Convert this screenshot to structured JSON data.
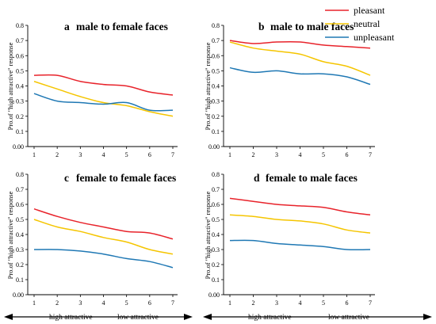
{
  "legend": {
    "entries": [
      {
        "label": "pleasant",
        "color": "#e8232b"
      },
      {
        "label": "neutral",
        "color": "#f5c500"
      },
      {
        "label": "unpleasant",
        "color": "#1f78b4"
      }
    ]
  },
  "arrows": [
    {
      "left_label": "high attractive",
      "right_label": "low attractive"
    },
    {
      "left_label": "high attractive",
      "right_label": "low attractive"
    }
  ],
  "chart_data": [
    {
      "type": "line",
      "letter": "a",
      "title": "male to female faces",
      "ylabel": "Pro.of \"high attractive\" response",
      "x": [
        1,
        2,
        3,
        4,
        5,
        6,
        7
      ],
      "xticks": [
        "1",
        "2",
        "3",
        "4",
        "5",
        "6",
        "7"
      ],
      "ylim": [
        0,
        0.8
      ],
      "yticks": [
        "0.00",
        "0.1",
        "0.2",
        "0.3",
        "0.4",
        "0.5",
        "0.6",
        "0.7",
        "0.8"
      ],
      "series": [
        {
          "name": "pleasant",
          "color": "#e8232b",
          "values": [
            0.47,
            0.47,
            0.43,
            0.41,
            0.4,
            0.36,
            0.34
          ]
        },
        {
          "name": "neutral",
          "color": "#f5c500",
          "values": [
            0.43,
            0.38,
            0.33,
            0.29,
            0.27,
            0.23,
            0.2
          ]
        },
        {
          "name": "unpleasant",
          "color": "#1f78b4",
          "values": [
            0.35,
            0.3,
            0.29,
            0.28,
            0.29,
            0.24,
            0.24
          ]
        }
      ]
    },
    {
      "type": "line",
      "letter": "b",
      "title": "male to male faces",
      "ylabel": "Pro.of \"high attractive\" response",
      "x": [
        1,
        2,
        3,
        4,
        5,
        6,
        7
      ],
      "xticks": [
        "1",
        "2",
        "3",
        "4",
        "5",
        "6",
        "7"
      ],
      "ylim": [
        0,
        0.8
      ],
      "yticks": [
        "0.00",
        "0.1",
        "0.2",
        "0.3",
        "0.4",
        "0.5",
        "0.6",
        "0.7",
        "0.8"
      ],
      "series": [
        {
          "name": "pleasant",
          "color": "#e8232b",
          "values": [
            0.7,
            0.68,
            0.69,
            0.69,
            0.67,
            0.66,
            0.65
          ]
        },
        {
          "name": "neutral",
          "color": "#f5c500",
          "values": [
            0.69,
            0.65,
            0.63,
            0.61,
            0.56,
            0.53,
            0.47
          ]
        },
        {
          "name": "unpleasant",
          "color": "#1f78b4",
          "values": [
            0.52,
            0.49,
            0.5,
            0.48,
            0.48,
            0.46,
            0.41
          ]
        }
      ]
    },
    {
      "type": "line",
      "letter": "c",
      "title": "female to female faces",
      "ylabel": "Pro.of \"high attractive\" response",
      "x": [
        1,
        2,
        3,
        4,
        5,
        6,
        7
      ],
      "xticks": [
        "1",
        "2",
        "3",
        "4",
        "5",
        "6",
        "7"
      ],
      "ylim": [
        0,
        0.8
      ],
      "yticks": [
        "0.00",
        "0.1",
        "0.2",
        "0.3",
        "0.4",
        "0.5",
        "0.6",
        "0.7",
        "0.8"
      ],
      "series": [
        {
          "name": "pleasant",
          "color": "#e8232b",
          "values": [
            0.57,
            0.52,
            0.48,
            0.45,
            0.42,
            0.41,
            0.37
          ]
        },
        {
          "name": "neutral",
          "color": "#f5c500",
          "values": [
            0.5,
            0.45,
            0.42,
            0.38,
            0.35,
            0.3,
            0.27
          ]
        },
        {
          "name": "unpleasant",
          "color": "#1f78b4",
          "values": [
            0.3,
            0.3,
            0.29,
            0.27,
            0.24,
            0.22,
            0.18
          ]
        }
      ]
    },
    {
      "type": "line",
      "letter": "d",
      "title": "female to male faces",
      "ylabel": "Pro.of \"high attractive\" response",
      "x": [
        1,
        2,
        3,
        4,
        5,
        6,
        7
      ],
      "xticks": [
        "1",
        "2",
        "3",
        "4",
        "5",
        "6",
        "7"
      ],
      "ylim": [
        0,
        0.8
      ],
      "yticks": [
        "0.00",
        "0.1",
        "0.2",
        "0.3",
        "0.4",
        "0.5",
        "0.6",
        "0.7",
        "0.8"
      ],
      "series": [
        {
          "name": "pleasant",
          "color": "#e8232b",
          "values": [
            0.64,
            0.62,
            0.6,
            0.59,
            0.58,
            0.55,
            0.53
          ]
        },
        {
          "name": "neutral",
          "color": "#f5c500",
          "values": [
            0.53,
            0.52,
            0.5,
            0.49,
            0.47,
            0.43,
            0.41
          ]
        },
        {
          "name": "unpleasant",
          "color": "#1f78b4",
          "values": [
            0.36,
            0.36,
            0.34,
            0.33,
            0.32,
            0.3,
            0.3
          ]
        }
      ]
    }
  ]
}
